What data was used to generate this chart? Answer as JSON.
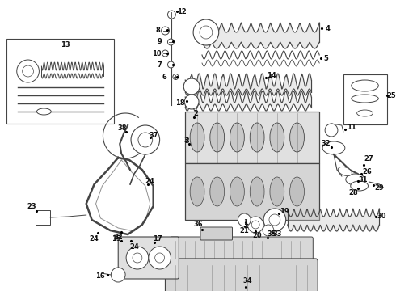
{
  "bg_color": "#ffffff",
  "line_color": "#444444",
  "label_fontsize": 6.0,
  "fig_width": 4.9,
  "fig_height": 3.6,
  "dpi": 100
}
